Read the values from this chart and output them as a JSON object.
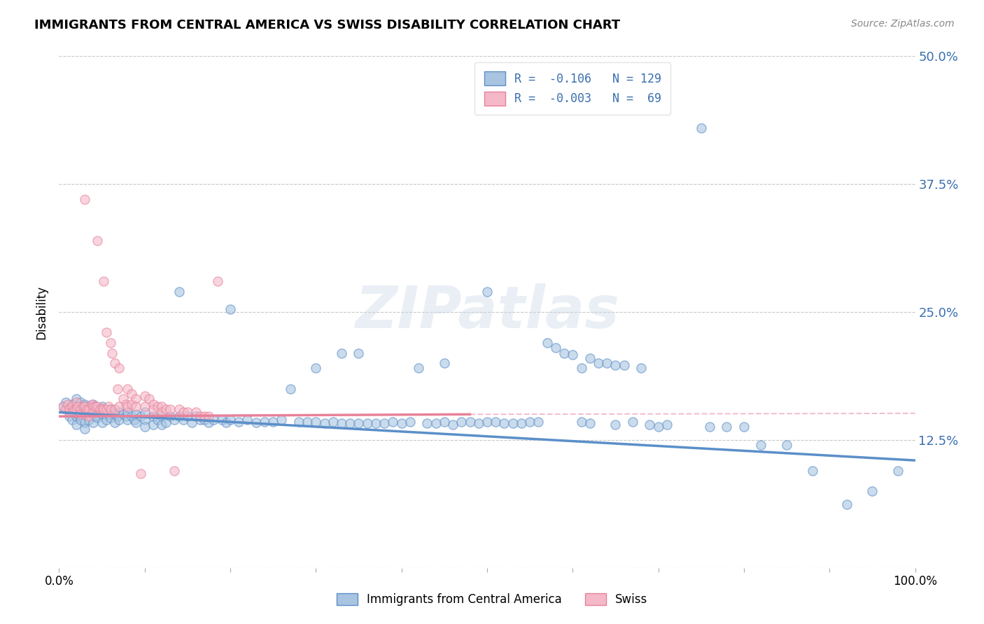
{
  "title": "IMMIGRANTS FROM CENTRAL AMERICA VS SWISS DISABILITY CORRELATION CHART",
  "source": "Source: ZipAtlas.com",
  "ylabel": "Disability",
  "xlim": [
    0.0,
    1.0
  ],
  "ylim": [
    0.0,
    0.5
  ],
  "yticks": [
    0.0,
    0.125,
    0.25,
    0.375,
    0.5
  ],
  "ytick_labels": [
    "",
    "12.5%",
    "25.0%",
    "37.5%",
    "50.0%"
  ],
  "blue_color": "#5b8fc9",
  "pink_color": "#e8819a",
  "blue_fill": "#a8c4e0",
  "pink_fill": "#f4b8c8",
  "watermark": "ZIPatlas",
  "background_color": "#ffffff",
  "grid_color": "#c8c8c8",
  "legend_label_blue": "R =  -0.106   N = 129",
  "legend_label_pink": "R =  -0.003   N =  69",
  "legend_text_color": "#3a6faf",
  "blue_trend": [
    0.0,
    0.152,
    1.0,
    0.105
  ],
  "pink_trend": [
    0.0,
    0.148,
    0.48,
    0.15
  ],
  "blue_scatter": [
    [
      0.005,
      0.158
    ],
    [
      0.008,
      0.162
    ],
    [
      0.01,
      0.155
    ],
    [
      0.012,
      0.148
    ],
    [
      0.015,
      0.16
    ],
    [
      0.015,
      0.145
    ],
    [
      0.018,
      0.152
    ],
    [
      0.02,
      0.165
    ],
    [
      0.02,
      0.155
    ],
    [
      0.02,
      0.148
    ],
    [
      0.02,
      0.14
    ],
    [
      0.022,
      0.158
    ],
    [
      0.022,
      0.15
    ],
    [
      0.025,
      0.162
    ],
    [
      0.025,
      0.152
    ],
    [
      0.025,
      0.145
    ],
    [
      0.028,
      0.155
    ],
    [
      0.03,
      0.16
    ],
    [
      0.03,
      0.15
    ],
    [
      0.03,
      0.142
    ],
    [
      0.03,
      0.136
    ],
    [
      0.032,
      0.158
    ],
    [
      0.035,
      0.152
    ],
    [
      0.035,
      0.145
    ],
    [
      0.038,
      0.155
    ],
    [
      0.04,
      0.16
    ],
    [
      0.04,
      0.15
    ],
    [
      0.04,
      0.142
    ],
    [
      0.042,
      0.155
    ],
    [
      0.042,
      0.148
    ],
    [
      0.045,
      0.155
    ],
    [
      0.045,
      0.147
    ],
    [
      0.048,
      0.152
    ],
    [
      0.05,
      0.158
    ],
    [
      0.05,
      0.15
    ],
    [
      0.05,
      0.142
    ],
    [
      0.052,
      0.155
    ],
    [
      0.055,
      0.152
    ],
    [
      0.055,
      0.145
    ],
    [
      0.058,
      0.15
    ],
    [
      0.06,
      0.155
    ],
    [
      0.06,
      0.147
    ],
    [
      0.062,
      0.152
    ],
    [
      0.065,
      0.15
    ],
    [
      0.065,
      0.142
    ],
    [
      0.068,
      0.148
    ],
    [
      0.07,
      0.152
    ],
    [
      0.07,
      0.145
    ],
    [
      0.075,
      0.15
    ],
    [
      0.078,
      0.148
    ],
    [
      0.08,
      0.152
    ],
    [
      0.08,
      0.145
    ],
    [
      0.085,
      0.148
    ],
    [
      0.088,
      0.145
    ],
    [
      0.09,
      0.15
    ],
    [
      0.09,
      0.142
    ],
    [
      0.095,
      0.148
    ],
    [
      0.1,
      0.152
    ],
    [
      0.1,
      0.145
    ],
    [
      0.1,
      0.138
    ],
    [
      0.11,
      0.148
    ],
    [
      0.11,
      0.14
    ],
    [
      0.115,
      0.145
    ],
    [
      0.12,
      0.148
    ],
    [
      0.12,
      0.14
    ],
    [
      0.125,
      0.142
    ],
    [
      0.13,
      0.148
    ],
    [
      0.135,
      0.145
    ],
    [
      0.14,
      0.27
    ],
    [
      0.14,
      0.148
    ],
    [
      0.145,
      0.145
    ],
    [
      0.15,
      0.148
    ],
    [
      0.155,
      0.142
    ],
    [
      0.16,
      0.148
    ],
    [
      0.165,
      0.145
    ],
    [
      0.17,
      0.145
    ],
    [
      0.175,
      0.142
    ],
    [
      0.18,
      0.145
    ],
    [
      0.19,
      0.145
    ],
    [
      0.195,
      0.142
    ],
    [
      0.2,
      0.253
    ],
    [
      0.2,
      0.145
    ],
    [
      0.21,
      0.143
    ],
    [
      0.22,
      0.145
    ],
    [
      0.23,
      0.142
    ],
    [
      0.24,
      0.143
    ],
    [
      0.25,
      0.143
    ],
    [
      0.26,
      0.145
    ],
    [
      0.27,
      0.175
    ],
    [
      0.28,
      0.143
    ],
    [
      0.29,
      0.143
    ],
    [
      0.3,
      0.195
    ],
    [
      0.3,
      0.143
    ],
    [
      0.31,
      0.141
    ],
    [
      0.32,
      0.143
    ],
    [
      0.33,
      0.21
    ],
    [
      0.33,
      0.141
    ],
    [
      0.34,
      0.141
    ],
    [
      0.35,
      0.21
    ],
    [
      0.35,
      0.141
    ],
    [
      0.36,
      0.141
    ],
    [
      0.37,
      0.141
    ],
    [
      0.38,
      0.141
    ],
    [
      0.39,
      0.143
    ],
    [
      0.4,
      0.141
    ],
    [
      0.41,
      0.143
    ],
    [
      0.42,
      0.195
    ],
    [
      0.43,
      0.141
    ],
    [
      0.44,
      0.141
    ],
    [
      0.45,
      0.2
    ],
    [
      0.45,
      0.143
    ],
    [
      0.46,
      0.14
    ],
    [
      0.47,
      0.143
    ],
    [
      0.48,
      0.143
    ],
    [
      0.49,
      0.141
    ],
    [
      0.5,
      0.27
    ],
    [
      0.5,
      0.143
    ],
    [
      0.51,
      0.143
    ],
    [
      0.52,
      0.141
    ],
    [
      0.53,
      0.141
    ],
    [
      0.54,
      0.141
    ],
    [
      0.55,
      0.143
    ],
    [
      0.56,
      0.143
    ],
    [
      0.57,
      0.22
    ],
    [
      0.58,
      0.215
    ],
    [
      0.59,
      0.21
    ],
    [
      0.6,
      0.208
    ],
    [
      0.61,
      0.195
    ],
    [
      0.61,
      0.143
    ],
    [
      0.62,
      0.205
    ],
    [
      0.62,
      0.141
    ],
    [
      0.63,
      0.2
    ],
    [
      0.64,
      0.2
    ],
    [
      0.65,
      0.198
    ],
    [
      0.65,
      0.14
    ],
    [
      0.66,
      0.198
    ],
    [
      0.67,
      0.143
    ],
    [
      0.68,
      0.195
    ],
    [
      0.69,
      0.14
    ],
    [
      0.7,
      0.138
    ],
    [
      0.71,
      0.14
    ],
    [
      0.75,
      0.43
    ],
    [
      0.76,
      0.138
    ],
    [
      0.78,
      0.138
    ],
    [
      0.8,
      0.138
    ],
    [
      0.82,
      0.12
    ],
    [
      0.85,
      0.12
    ],
    [
      0.88,
      0.095
    ],
    [
      0.92,
      0.062
    ],
    [
      0.95,
      0.075
    ],
    [
      0.98,
      0.095
    ]
  ],
  "pink_scatter": [
    [
      0.005,
      0.158
    ],
    [
      0.008,
      0.155
    ],
    [
      0.01,
      0.16
    ],
    [
      0.012,
      0.155
    ],
    [
      0.015,
      0.158
    ],
    [
      0.015,
      0.152
    ],
    [
      0.018,
      0.155
    ],
    [
      0.02,
      0.162
    ],
    [
      0.02,
      0.155
    ],
    [
      0.022,
      0.158
    ],
    [
      0.025,
      0.155
    ],
    [
      0.025,
      0.15
    ],
    [
      0.028,
      0.158
    ],
    [
      0.03,
      0.36
    ],
    [
      0.03,
      0.158
    ],
    [
      0.03,
      0.15
    ],
    [
      0.032,
      0.155
    ],
    [
      0.035,
      0.155
    ],
    [
      0.035,
      0.148
    ],
    [
      0.038,
      0.16
    ],
    [
      0.04,
      0.158
    ],
    [
      0.04,
      0.152
    ],
    [
      0.042,
      0.158
    ],
    [
      0.045,
      0.32
    ],
    [
      0.045,
      0.158
    ],
    [
      0.048,
      0.155
    ],
    [
      0.05,
      0.156
    ],
    [
      0.052,
      0.28
    ],
    [
      0.052,
      0.155
    ],
    [
      0.055,
      0.23
    ],
    [
      0.055,
      0.155
    ],
    [
      0.058,
      0.158
    ],
    [
      0.06,
      0.22
    ],
    [
      0.06,
      0.155
    ],
    [
      0.062,
      0.21
    ],
    [
      0.065,
      0.2
    ],
    [
      0.065,
      0.155
    ],
    [
      0.068,
      0.175
    ],
    [
      0.07,
      0.195
    ],
    [
      0.07,
      0.158
    ],
    [
      0.075,
      0.165
    ],
    [
      0.078,
      0.16
    ],
    [
      0.08,
      0.175
    ],
    [
      0.08,
      0.158
    ],
    [
      0.085,
      0.17
    ],
    [
      0.085,
      0.16
    ],
    [
      0.09,
      0.165
    ],
    [
      0.09,
      0.158
    ],
    [
      0.095,
      0.092
    ],
    [
      0.1,
      0.168
    ],
    [
      0.1,
      0.158
    ],
    [
      0.105,
      0.165
    ],
    [
      0.11,
      0.16
    ],
    [
      0.11,
      0.155
    ],
    [
      0.115,
      0.158
    ],
    [
      0.12,
      0.158
    ],
    [
      0.12,
      0.152
    ],
    [
      0.125,
      0.155
    ],
    [
      0.13,
      0.155
    ],
    [
      0.135,
      0.095
    ],
    [
      0.14,
      0.155
    ],
    [
      0.145,
      0.152
    ],
    [
      0.15,
      0.152
    ],
    [
      0.16,
      0.152
    ],
    [
      0.165,
      0.148
    ],
    [
      0.17,
      0.148
    ],
    [
      0.175,
      0.148
    ],
    [
      0.185,
      0.28
    ]
  ]
}
